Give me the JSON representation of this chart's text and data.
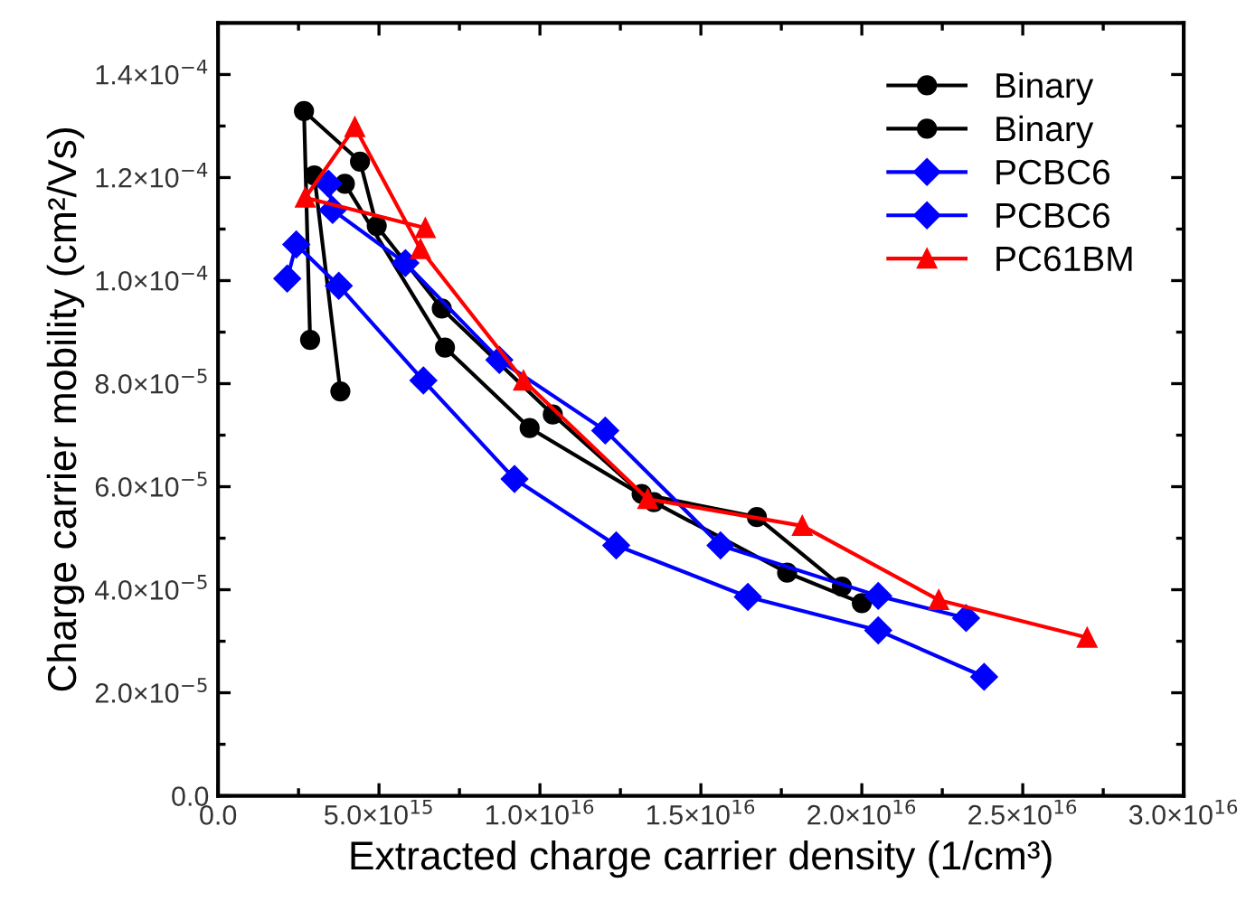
{
  "chart_data": {
    "type": "line",
    "xlabel": "Extracted charge carrier density (1/cm³)",
    "ylabel": "Charge carrier mobility (cm²/Vs)",
    "xlim": [
      0,
      3e+16
    ],
    "ylim": [
      0,
      0.00015
    ],
    "xticks": [
      {
        "value": 0,
        "label": "0.0"
      },
      {
        "value": 5000000000000000.0,
        "label": "5.0×10$^{15}$"
      },
      {
        "value": 1e+16,
        "label": "1.0×10$^{16}$"
      },
      {
        "value": 1.5e+16,
        "label": "1.5×10$^{16}$"
      },
      {
        "value": 2e+16,
        "label": "2.0×10$^{16}$"
      },
      {
        "value": 2.5e+16,
        "label": "2.5×10$^{16}$"
      },
      {
        "value": 3e+16,
        "label": "3.0×10$^{16}$"
      }
    ],
    "yticks": [
      {
        "value": 0,
        "label": "0.0"
      },
      {
        "value": 2e-05,
        "label": "2.0×10$^{−5}$"
      },
      {
        "value": 4e-05,
        "label": "4.0×10$^{−5}$"
      },
      {
        "value": 6e-05,
        "label": "6.0×10$^{−5}$"
      },
      {
        "value": 8e-05,
        "label": "8.0×10$^{−5}$"
      },
      {
        "value": 0.0001,
        "label": "1.0×10$^{−4}$"
      },
      {
        "value": 0.00012,
        "label": "1.2×10$^{−4}$"
      },
      {
        "value": 0.00014,
        "label": "1.4×10$^{−4}$"
      }
    ],
    "grid": false,
    "legend": "top right",
    "line_style": "solid",
    "series": [
      {
        "name": "Binary",
        "color": "#000000",
        "marker": "circle",
        "x": [
          2860000000000000.0,
          2670000000000000.0,
          4410000000000000.0,
          4930000000000000.0,
          6950000000000000.0,
          1.04e+16,
          1.316e+16,
          1.674e+16,
          1.938e+16
        ],
        "values": [
          8.85e-05,
          0.0001329,
          0.0001231,
          0.0001106,
          9.46e-05,
          7.4e-05,
          5.86e-05,
          5.41e-05,
          4.06e-05
        ]
      },
      {
        "name": "Binary",
        "color": "#000000",
        "marker": "circle",
        "x": [
          3800000000000000.0,
          2990000000000000.0,
          3940000000000000.0,
          7050000000000000.0,
          9680000000000000.0,
          1.354e+16,
          1.768e+16,
          2e+16
        ],
        "values": [
          7.85e-05,
          0.0001204,
          0.0001188,
          8.7e-05,
          7.14e-05,
          5.7e-05,
          4.33e-05,
          3.74e-05
        ]
      },
      {
        "name": "PCBC6",
        "color": "#0000ff",
        "marker": "diamond",
        "x": [
          3430000000000000.0,
          3560000000000000.0,
          5820000000000000.0,
          8740000000000000.0,
          1.203e+16,
          1.561e+16,
          2.051e+16,
          2.324e+16
        ],
        "values": [
          0.0001188,
          0.0001137,
          0.0001034,
          8.46e-05,
          7.09e-05,
          4.86e-05,
          3.88e-05,
          3.45e-05
        ]
      },
      {
        "name": "PCBC6",
        "color": "#0000ff",
        "marker": "diamond",
        "x": [
          2150000000000000.0,
          2430000000000000.0,
          3750000000000000.0,
          6380000000000000.0,
          9210000000000000.0,
          1.237e+16,
          1.646e+16,
          2.051e+16,
          2.38e+16
        ],
        "values": [
          0.0001004,
          0.000107,
          9.9e-05,
          8.06e-05,
          6.15e-05,
          4.86e-05,
          3.86e-05,
          3.21e-05,
          2.31e-05
        ]
      },
      {
        "name": "PC61BM",
        "color": "#ff0000",
        "marker": "triangle",
        "x": [
          6440000000000000.0,
          2710000000000000.0,
          4250000000000000.0,
          6290000000000000.0,
          9490000000000000.0,
          1.335e+16,
          1.815e+16,
          2.239e+16,
          2.7e+16
        ],
        "values": [
          0.0001102,
          0.0001161,
          0.0001298,
          0.0001061,
          8.06e-05,
          5.76e-05,
          5.24e-05,
          3.8e-05,
          3.07e-05
        ]
      }
    ]
  }
}
